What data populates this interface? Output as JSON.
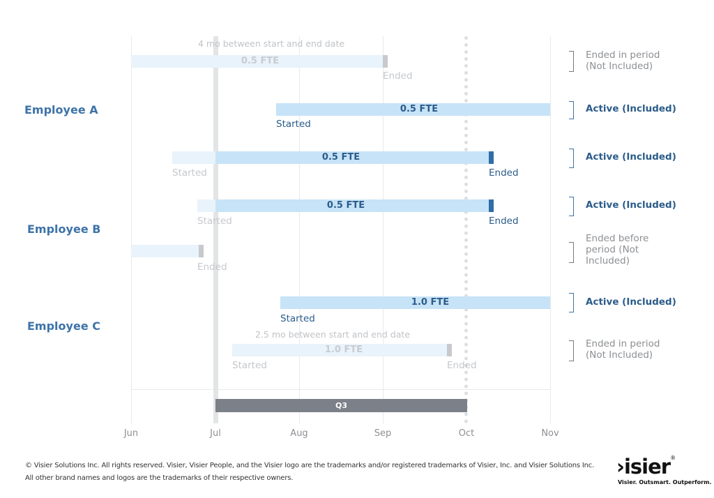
{
  "axis": {
    "months": [
      "Jun",
      "Jul",
      "Aug",
      "Sep",
      "Oct",
      "Nov"
    ],
    "period_label": "Q3"
  },
  "employees": {
    "a": "Employee A",
    "b": "Employee B",
    "c": "Employee C"
  },
  "rows": [
    {
      "note": "4 mo between start and end date",
      "fte": "0.5 FTE",
      "start": "",
      "end": "Ended",
      "status": "Ended in period (Not Included)",
      "included": false
    },
    {
      "note": "",
      "fte": "0.5 FTE",
      "start": "Started",
      "end": "",
      "status": "Active (Included)",
      "included": true
    },
    {
      "note": "",
      "fte": "0.5 FTE",
      "start": "Started",
      "end": "Ended",
      "status": "Active (Included)",
      "included": true
    },
    {
      "note": "",
      "fte": "0.5 FTE",
      "start": "Started",
      "end": "Ended",
      "status": "Active (Included)",
      "included": true
    },
    {
      "note": "",
      "fte": "",
      "start": "",
      "end": "Ended",
      "status": "Ended before period (Not Included)",
      "included": false
    },
    {
      "note": "",
      "fte": "1.0 FTE",
      "start": "Started",
      "end": "",
      "status": "Active (Included)",
      "included": true
    },
    {
      "note": "2.5 mo between start and end date",
      "fte": "1.0 FTE",
      "start": "Started",
      "end": "Ended",
      "status": "Ended in period (Not Included)",
      "included": false
    }
  ],
  "status_lines": {
    "r0": [
      "Ended in period",
      "(Not Included)"
    ],
    "r4": [
      "Ended before",
      "period (Not",
      "Included)"
    ],
    "r6": [
      "Ended in period",
      "(Not Included)"
    ]
  },
  "footer": {
    "line1": "© Visier Solutions Inc. All rights reserved. Visier, Visier People, and the Visier logo are the trademarks and/or registered trademarks of Visier, Inc. and Visier Solutions Inc.",
    "line2": "All other brand names and logos are the trademarks of their respective owners."
  },
  "logo": {
    "wordmark": "›isier",
    "reg": "®",
    "tagline": "Visier. Outsmart. Outperform."
  },
  "colors": {
    "accent": "#3d73a8",
    "active_bar": "#c7e3f7",
    "q3_bar": "#7c8088"
  }
}
